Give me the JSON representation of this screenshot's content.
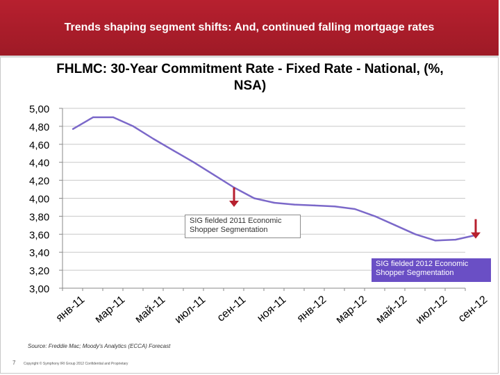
{
  "banner": {
    "title": "Trends shaping segment shifts: And, continued falling mortgage rates"
  },
  "chart_data": {
    "type": "line",
    "title": "FHLMC: 30-Year Commitment Rate - Fixed Rate - National, (%, NSA)",
    "categories": [
      "янв-11",
      "фев-11",
      "мар-11",
      "апр-11",
      "май-11",
      "июн-11",
      "июл-11",
      "авг-11",
      "сен-11",
      "окт-11",
      "ноя-11",
      "дек-11",
      "янв-12",
      "фев-12",
      "мар-12",
      "апр-12",
      "май-12",
      "июн-12",
      "июл-12",
      "авг-12",
      "сен-12"
    ],
    "visible_tick_labels": [
      "янв-11",
      "мар-11",
      "май-11",
      "июл-11",
      "сен-11",
      "ноя-11",
      "янв-12",
      "мар-12",
      "май-12",
      "июл-12",
      "сен-12"
    ],
    "series": [
      {
        "values": [
          4.77,
          4.9,
          4.9,
          4.8,
          4.66,
          4.53,
          4.4,
          4.26,
          4.12,
          4.0,
          3.95,
          3.93,
          3.92,
          3.91,
          3.88,
          3.8,
          3.7,
          3.6,
          3.53,
          3.54,
          3.59
        ],
        "color": "#7b68c9"
      }
    ],
    "y_ticks": [
      "3,00",
      "3,20",
      "3,40",
      "3,60",
      "3,80",
      "4,00",
      "4,20",
      "4,40",
      "4,60",
      "4,80",
      "5,00"
    ],
    "ylim": [
      3.0,
      5.0
    ],
    "grid": true,
    "legend": "none",
    "annotations": [
      {
        "text": "SIG fielded 2011 Economic Shopper Segmentation",
        "arrow_at": "сен-11"
      },
      {
        "text": "SIG fielded 2012 Economic Shopper Segmentation",
        "arrow_at": "сен-12"
      }
    ],
    "arrow_color": "#b7202f"
  },
  "footer": {
    "source": "Source: Freddie Mac; Moody's Analytics (ECCA) Forecast",
    "page_number": "7",
    "copyright": "Copyright © Symphony IRI Group 2012 Confidential and Proprietary"
  }
}
